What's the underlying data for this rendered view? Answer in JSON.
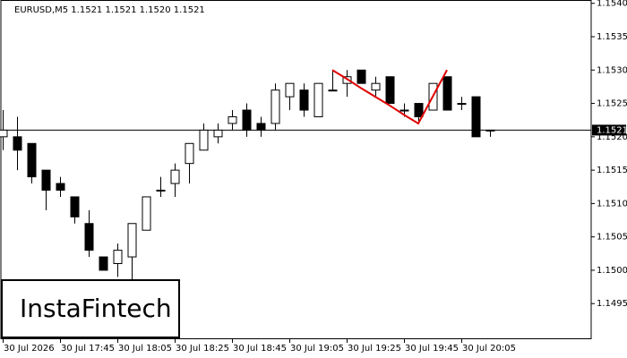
{
  "chart_data": {
    "type": "candlestick",
    "title": "EURUSD,M5  1.1521 1.1521 1.1520 1.1521",
    "categories": [
      "30 Jul 2026",
      null,
      null,
      null,
      "30 Jul 17:45",
      null,
      null,
      null,
      "30 Jul 18:05",
      null,
      null,
      null,
      "30 Jul 18:25",
      null,
      null,
      null,
      "30 Jul 18:45",
      null,
      null,
      null,
      "30 Jul 19:05",
      null,
      null,
      null,
      "30 Jul 19:25",
      null,
      null,
      null,
      "30 Jul 19:45",
      null,
      null,
      null,
      "30 Jul 20:05",
      null,
      null
    ],
    "open": [
      1.152,
      1.152,
      1.1519,
      1.1515,
      1.1513,
      1.1511,
      1.1507,
      1.1502,
      1.1501,
      1.1502,
      1.1506,
      1.1512,
      1.1513,
      1.1516,
      1.1518,
      1.152,
      1.1522,
      1.1524,
      1.1522,
      1.1522,
      1.1526,
      1.1527,
      1.1523,
      1.1527,
      1.1528,
      1.153,
      1.1527,
      1.1529,
      1.1524,
      1.1525,
      1.1524,
      1.1529,
      1.1525,
      1.1526,
      1.1521
    ],
    "high": [
      1.1524,
      1.1523,
      1.1519,
      1.1515,
      1.1514,
      1.1511,
      1.1509,
      1.1502,
      1.1504,
      1.1507,
      1.1511,
      1.1514,
      1.1516,
      1.1519,
      1.1522,
      1.1522,
      1.1524,
      1.1525,
      1.1523,
      1.1528,
      1.1528,
      1.1528,
      1.1528,
      1.153,
      1.153,
      1.153,
      1.1529,
      1.1529,
      1.1525,
      1.1525,
      1.1528,
      1.1529,
      1.1526,
      1.1526,
      1.1521
    ],
    "low": [
      1.1518,
      1.1515,
      1.1513,
      1.1509,
      1.1511,
      1.1507,
      1.1502,
      1.15,
      1.1499,
      1.1498,
      1.1506,
      1.1511,
      1.1511,
      1.1513,
      1.1518,
      1.1519,
      1.1521,
      1.152,
      1.152,
      1.1521,
      1.1524,
      1.1523,
      1.1523,
      1.1527,
      1.1526,
      1.1528,
      1.1526,
      1.1525,
      1.1523,
      1.1522,
      1.1524,
      1.1524,
      1.1524,
      1.152,
      1.152
    ],
    "close": [
      1.1521,
      1.1518,
      1.1514,
      1.1512,
      1.1512,
      1.1508,
      1.1503,
      1.15,
      1.1503,
      1.1507,
      1.1511,
      1.1512,
      1.1515,
      1.1519,
      1.1521,
      1.1521,
      1.1523,
      1.1521,
      1.1521,
      1.1527,
      1.1528,
      1.1524,
      1.1528,
      1.1527,
      1.1529,
      1.1528,
      1.1528,
      1.1525,
      1.1524,
      1.1523,
      1.1528,
      1.1524,
      1.1525,
      1.152,
      1.1521
    ],
    "up_color": "#ffffff",
    "down_color": "#000000",
    "pattern": {
      "color": "#e00000",
      "values": [
        null,
        null,
        null,
        null,
        null,
        null,
        null,
        null,
        null,
        null,
        null,
        null,
        null,
        null,
        null,
        null,
        null,
        null,
        null,
        null,
        null,
        null,
        null,
        1.153,
        1.15287,
        1.15273,
        1.1526,
        1.15247,
        1.15233,
        1.1522,
        1.1526,
        1.153,
        null,
        null,
        null
      ]
    },
    "current_price": 1.1521,
    "ylim": [
      1.14898,
      1.15405
    ],
    "yticks": [
      1.1495,
      {
        "value": 1.15,
        "label": "1.1500"
      },
      1.1505,
      {
        "value": 1.151,
        "label": "1.1510"
      },
      1.1515,
      {
        "value": 1.152,
        "label": "1.1520"
      },
      1.1525,
      {
        "value": 1.153,
        "label": "1.1530"
      },
      1.1535,
      {
        "value": 1.154,
        "label": "1.1540"
      }
    ],
    "watermark": "InstaFintech"
  }
}
